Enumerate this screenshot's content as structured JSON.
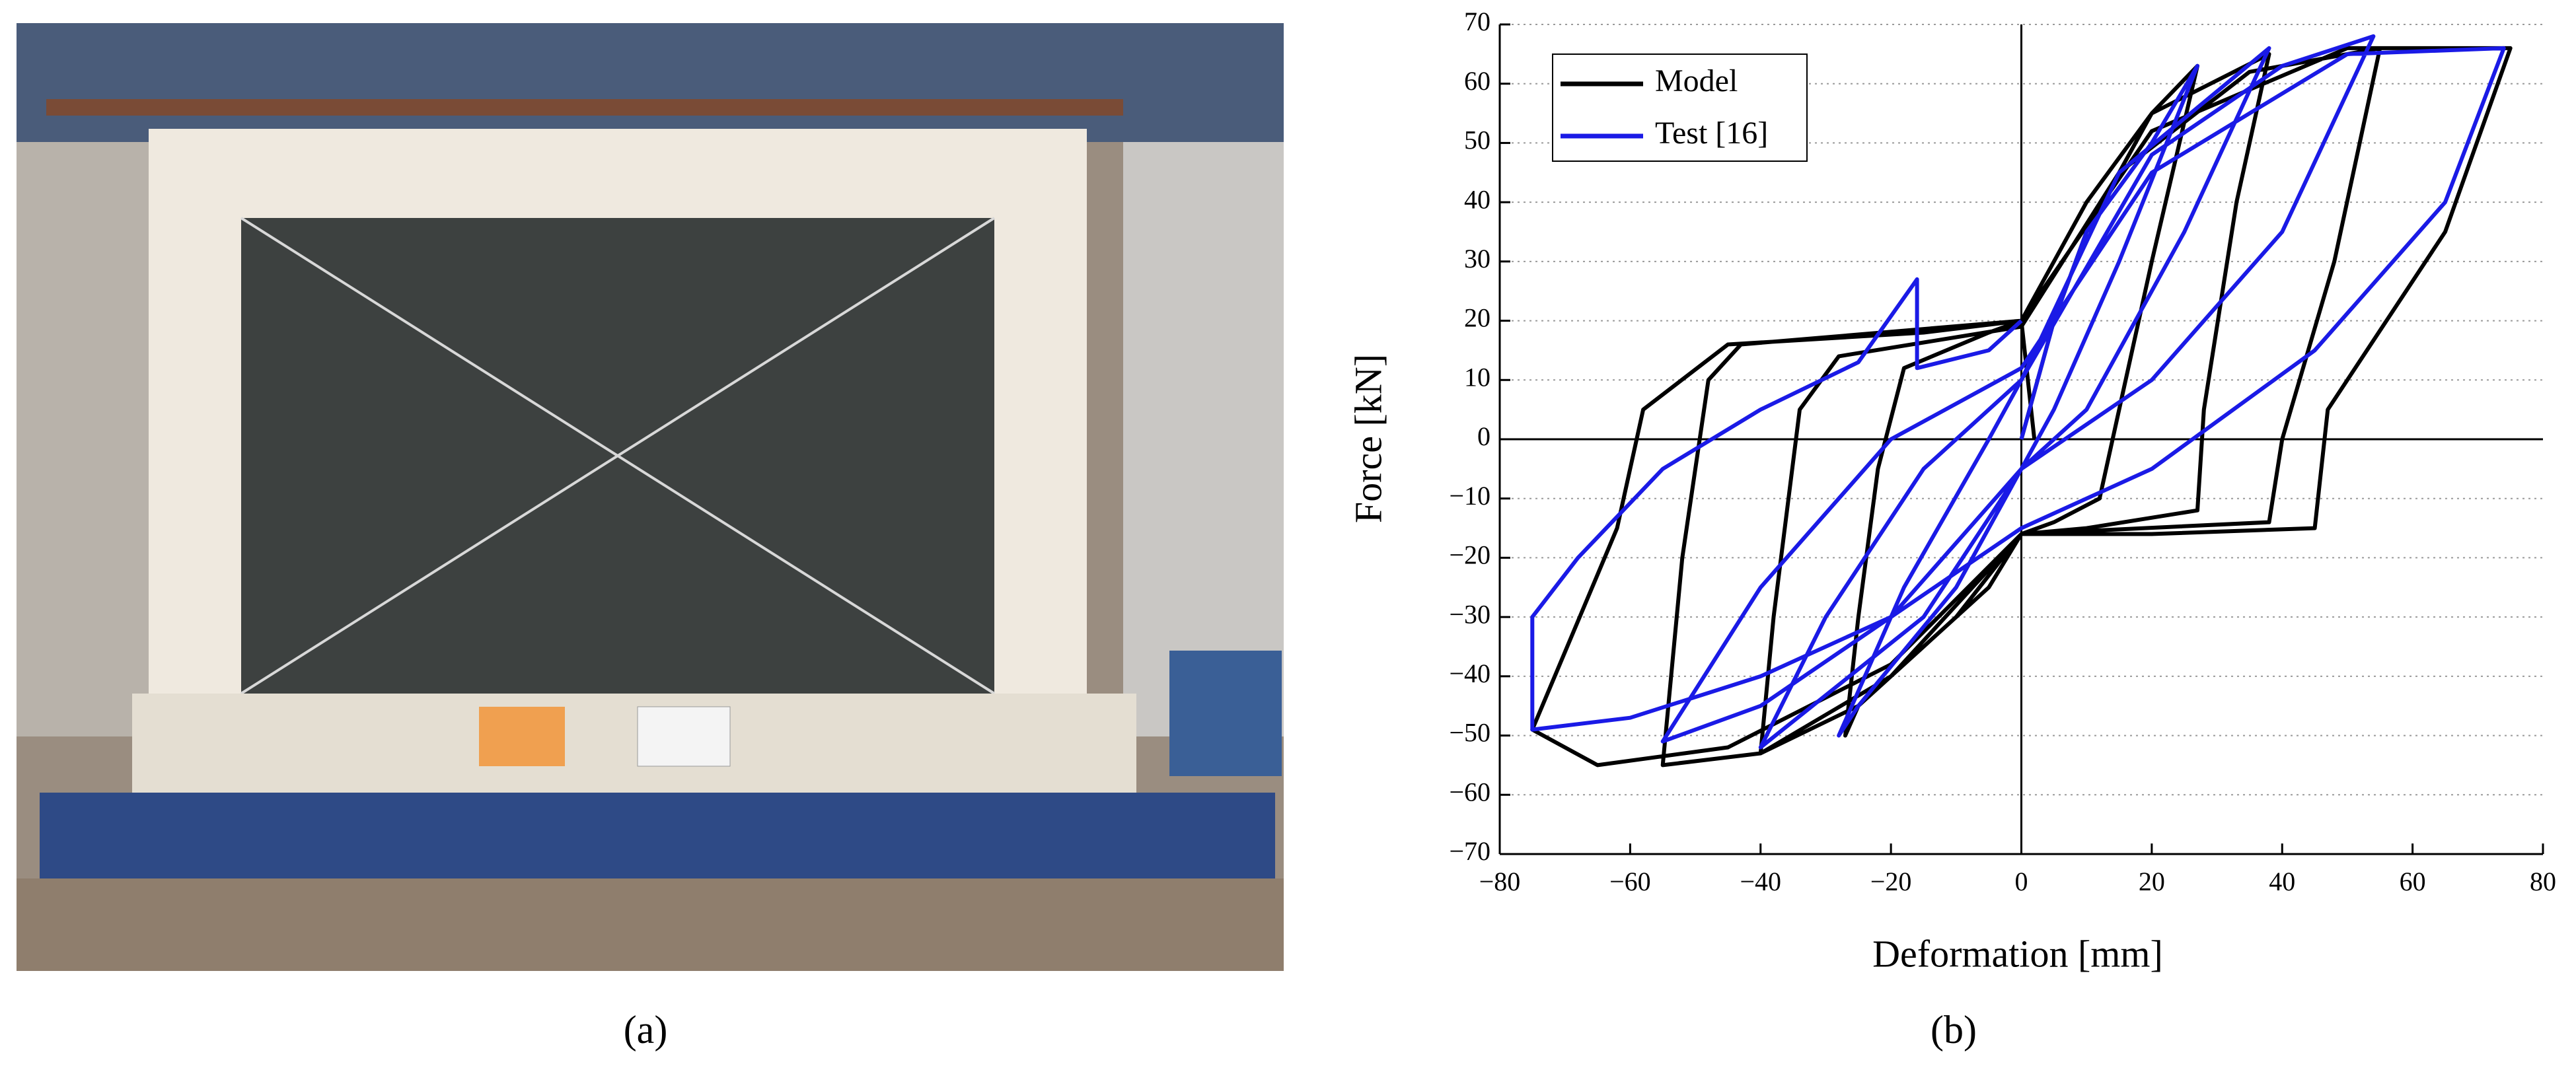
{
  "chart_data": {
    "type": "line",
    "xlabel": "Deformation [mm]",
    "ylabel": "Force [kN]",
    "caption_photo": "(a)",
    "caption_chart": "(b)",
    "xlim": [
      -80,
      80
    ],
    "ylim": [
      -70,
      70
    ],
    "xticks": [
      {
        "value": -80,
        "label": "−80"
      },
      {
        "value": -60,
        "label": "−60"
      },
      {
        "value": -40,
        "label": "−40"
      },
      {
        "value": -20,
        "label": "−20"
      },
      0,
      20,
      40,
      60,
      80
    ],
    "yticks": [
      {
        "value": -70,
        "label": "−70"
      },
      {
        "value": -60,
        "label": "−60"
      },
      {
        "value": -50,
        "label": "−50"
      },
      {
        "value": -40,
        "label": "−40"
      },
      {
        "value": -30,
        "label": "−30"
      },
      {
        "value": -20,
        "label": "−20"
      },
      {
        "value": -10,
        "label": "−10"
      },
      0,
      10,
      20,
      30,
      40,
      50,
      60,
      70
    ],
    "grid": true,
    "legend": "upper-left",
    "series": [
      {
        "name": "Model",
        "color": "#000000",
        "x": [
          0,
          5,
          10,
          15,
          20,
          27,
          20,
          15,
          12,
          5,
          0,
          -5,
          -15,
          -25,
          -27,
          -25,
          -22,
          -18,
          -5,
          0,
          10,
          20,
          38,
          33,
          28,
          27,
          10,
          0,
          -10,
          -25,
          -40,
          -38,
          -34,
          -28,
          0,
          15,
          35,
          55,
          48,
          40,
          38,
          0,
          -20,
          -40,
          -55,
          -52,
          -48,
          -43,
          0,
          20,
          50,
          75,
          65,
          47,
          45,
          20,
          0,
          -20,
          -45,
          -65,
          -75,
          -62,
          -58,
          -45,
          -15,
          0,
          2
        ],
        "values": [
          0,
          20,
          35,
          45,
          55,
          63,
          30,
          5,
          -10,
          -14,
          -16,
          -25,
          -35,
          -45,
          -50,
          -30,
          -5,
          12,
          18,
          20,
          40,
          55,
          65,
          40,
          5,
          -12,
          -15,
          -16,
          -30,
          -45,
          -53,
          -30,
          5,
          14,
          19,
          45,
          62,
          66,
          30,
          0,
          -14,
          -16,
          -40,
          -53,
          -55,
          -20,
          10,
          16,
          20,
          52,
          66,
          66,
          35,
          5,
          -15,
          -16,
          -16,
          -38,
          -52,
          -55,
          -49,
          -15,
          5,
          16,
          18,
          20,
          0
        ]
      },
      {
        "name": "Test [16]",
        "color": "#1a1ae6",
        "x": [
          0,
          5,
          10,
          20,
          27,
          15,
          5,
          0,
          -10,
          -25,
          -28,
          -18,
          -5,
          0,
          15,
          38,
          25,
          10,
          0,
          -15,
          -40,
          -30,
          -15,
          0,
          20,
          40,
          54,
          40,
          20,
          0,
          -20,
          -40,
          -55,
          -40,
          -20,
          0,
          20,
          50,
          74,
          65,
          45,
          20,
          0,
          -20,
          -40,
          -60,
          -75,
          -75,
          -68,
          -55,
          -40,
          -25,
          -16,
          -16,
          -5,
          0
        ],
        "values": [
          0,
          20,
          35,
          50,
          63,
          30,
          5,
          -5,
          -25,
          -45,
          -50,
          -25,
          0,
          10,
          45,
          66,
          35,
          5,
          -5,
          -30,
          -52,
          -30,
          -5,
          10,
          48,
          63,
          68,
          35,
          10,
          -5,
          -30,
          -45,
          -51,
          -25,
          0,
          12,
          45,
          65,
          66,
          40,
          15,
          -5,
          -15,
          -30,
          -40,
          -47,
          -49,
          -30,
          -20,
          -5,
          5,
          13,
          27,
          12,
          15,
          20
        ]
      }
    ]
  }
}
